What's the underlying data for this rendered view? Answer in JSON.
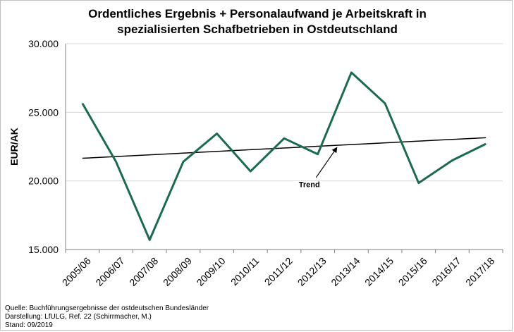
{
  "chart_data": {
    "type": "line",
    "title_lines": [
      "Ordentliches Ergebnis + Personalaufwand je Arbeitskraft in",
      "spezialisierten Schafbetrieben in Ostdeutschland"
    ],
    "ylabel": "EUR/AK",
    "xlabel": "",
    "categories": [
      "2005/06",
      "2006/07",
      "2007/08",
      "2008/09",
      "2009/10",
      "2010/11",
      "2011/12",
      "2012/13",
      "2013/14",
      "2014/15",
      "2015/16",
      "2016/17",
      "2017/18"
    ],
    "series": [
      {
        "values": [
          25650,
          21400,
          15700,
          21400,
          23450,
          20700,
          23100,
          21950,
          27900,
          25650,
          19850,
          21500,
          22700
        ],
        "color": "#1a6b50"
      }
    ],
    "trend": {
      "label": "Trend",
      "start": 21650,
      "end": 23150,
      "color": "#000000"
    },
    "ylim": [
      15000,
      30000
    ],
    "yticks": [
      15000,
      20000,
      25000,
      30000
    ],
    "ytick_labels": [
      "15.000",
      "20.000",
      "25.000",
      "30.000"
    ],
    "grid": true,
    "legend": "none"
  },
  "notes": {
    "source": "Quelle: Buchführungsergebnisse der ostdeutschen Bundesländer",
    "credit": "Darstellung: LfULG, Ref. 22 (Schirrmacher, M.)",
    "date": "Stand: 09/2019"
  }
}
